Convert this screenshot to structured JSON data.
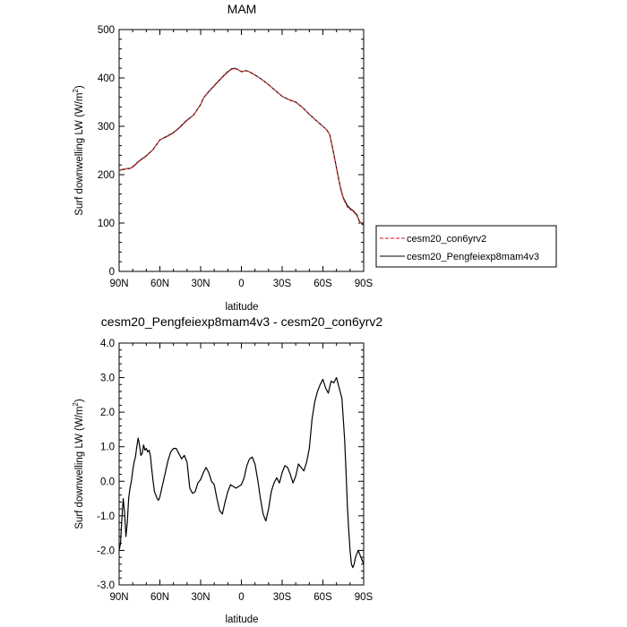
{
  "chart_data": [
    {
      "type": "line",
      "title": "MAM",
      "xlabel": "latitude",
      "ylabel": "Surf downwelling LW (W/m",
      "ylabel_sup": "2",
      "ylabel_close": ")",
      "xlim": [
        90,
        -90
      ],
      "ylim": [
        0,
        500
      ],
      "xticks": [
        90,
        60,
        30,
        0,
        -30,
        -60,
        -90
      ],
      "xticklabels": [
        "90N",
        "60N",
        "30N",
        "0",
        "30S",
        "60S",
        "90S"
      ],
      "yticks": [
        0,
        100,
        200,
        300,
        400,
        500
      ],
      "yticklabels": [
        "0",
        "100",
        "200",
        "300",
        "400",
        "500"
      ],
      "legend_position": "right",
      "series": [
        {
          "name": "cesm20_con6yrv2",
          "color": "#e04040",
          "style": "dashed",
          "x": [
            90,
            85,
            82,
            80,
            75,
            72,
            70,
            65,
            62,
            60,
            55,
            50,
            45,
            40,
            38,
            35,
            30,
            28,
            25,
            20,
            15,
            10,
            7,
            5,
            3,
            0,
            -3,
            -5,
            -10,
            -15,
            -20,
            -25,
            -30,
            -35,
            -40,
            -45,
            -50,
            -55,
            -60,
            -63,
            -65,
            -67,
            -70,
            -73,
            -75,
            -78,
            -80,
            -82,
            -85,
            -87,
            -90
          ],
          "y": [
            210,
            212,
            213,
            215,
            228,
            234,
            238,
            252,
            264,
            272,
            278,
            286,
            298,
            312,
            316,
            324,
            345,
            358,
            368,
            383,
            398,
            412,
            418,
            419,
            418,
            413,
            415,
            414,
            406,
            397,
            386,
            374,
            362,
            355,
            350,
            339,
            325,
            312,
            300,
            292,
            283,
            255,
            212,
            170,
            150,
            133,
            128,
            125,
            115,
            102,
            95
          ]
        },
        {
          "name": "cesm20_Pengfeiexp8mam4v3",
          "color": "#000000",
          "style": "solid",
          "x": [
            90,
            85,
            82,
            80,
            75,
            72,
            70,
            65,
            62,
            60,
            55,
            50,
            45,
            40,
            38,
            35,
            30,
            28,
            25,
            20,
            15,
            10,
            7,
            5,
            3,
            0,
            -3,
            -5,
            -10,
            -15,
            -20,
            -25,
            -30,
            -35,
            -40,
            -45,
            -50,
            -55,
            -60,
            -63,
            -65,
            -67,
            -70,
            -73,
            -75,
            -78,
            -80,
            -82,
            -85,
            -87,
            -90
          ],
          "y": [
            209,
            212,
            213,
            216,
            229,
            235,
            239,
            252,
            264,
            272,
            279,
            287,
            299,
            313,
            317,
            324,
            345,
            358,
            369,
            384,
            399,
            413,
            419,
            420,
            418,
            413,
            415,
            414,
            406,
            397,
            386,
            374,
            362,
            355,
            350,
            339,
            325,
            312,
            300,
            292,
            283,
            257,
            214,
            172,
            152,
            136,
            130,
            126,
            117,
            103,
            95
          ]
        }
      ]
    },
    {
      "type": "line",
      "title": "cesm20_Pengfeiexp8mam4v3 - cesm20_con6yrv2",
      "xlabel": "latitude",
      "ylabel": "Surf downwelling LW (W/m",
      "ylabel_sup": "2",
      "ylabel_close": ")",
      "xlim": [
        90,
        -90
      ],
      "ylim": [
        -3.0,
        4.0
      ],
      "xticks": [
        90,
        60,
        30,
        0,
        -30,
        -60,
        -90
      ],
      "xticklabels": [
        "90N",
        "60N",
        "30N",
        "0",
        "30S",
        "60S",
        "90S"
      ],
      "yticks": [
        -3.0,
        -2.0,
        -1.0,
        0.0,
        1.0,
        2.0,
        3.0,
        4.0
      ],
      "yticklabels": [
        "-3.0",
        "-2.0",
        "-1.0",
        "0.0",
        "1.0",
        "2.0",
        "3.0",
        "4.0"
      ],
      "series": [
        {
          "name": "",
          "color": "#000000",
          "style": "solid",
          "x": [
            90,
            89,
            88,
            87,
            86,
            85,
            84,
            83,
            82,
            81,
            80,
            79,
            78,
            77,
            76,
            75,
            74,
            73,
            72,
            71,
            70,
            69,
            68,
            67,
            66,
            65,
            64,
            63,
            62,
            61,
            60,
            58,
            56,
            54,
            52,
            50,
            48,
            46,
            44,
            42,
            40,
            38,
            36,
            34,
            32,
            30,
            28,
            26,
            24,
            22,
            20,
            18,
            16,
            14,
            12,
            10,
            8,
            6,
            4,
            2,
            0,
            -2,
            -4,
            -6,
            -8,
            -10,
            -12,
            -14,
            -16,
            -18,
            -20,
            -22,
            -24,
            -26,
            -28,
            -30,
            -32,
            -34,
            -36,
            -38,
            -40,
            -42,
            -44,
            -46,
            -48,
            -50,
            -52,
            -54,
            -56,
            -58,
            -60,
            -62,
            -64,
            -66,
            -68,
            -70,
            -72,
            -74,
            -75,
            -76,
            -77,
            -78,
            -79,
            -80,
            -81,
            -82,
            -83,
            -84,
            -85,
            -86,
            -87,
            -88,
            -89,
            -90
          ],
          "y": [
            -2.0,
            -1.8,
            -1.1,
            -0.5,
            -0.9,
            -1.6,
            -1.2,
            -0.5,
            -0.2,
            0.0,
            0.3,
            0.55,
            0.7,
            1.0,
            1.25,
            1.05,
            0.75,
            0.8,
            1.05,
            0.9,
            0.95,
            0.85,
            0.9,
            0.75,
            0.35,
            0.0,
            -0.3,
            -0.4,
            -0.5,
            -0.55,
            -0.45,
            -0.1,
            0.25,
            0.6,
            0.85,
            0.95,
            0.95,
            0.8,
            0.65,
            0.75,
            0.55,
            -0.2,
            -0.35,
            -0.3,
            -0.05,
            0.05,
            0.25,
            0.4,
            0.25,
            0.0,
            -0.1,
            -0.5,
            -0.85,
            -0.95,
            -0.6,
            -0.3,
            -0.1,
            -0.15,
            -0.2,
            -0.15,
            -0.1,
            0.1,
            0.45,
            0.65,
            0.7,
            0.5,
            0.05,
            -0.5,
            -0.95,
            -1.15,
            -0.8,
            -0.3,
            -0.05,
            0.1,
            -0.05,
            0.25,
            0.45,
            0.4,
            0.2,
            -0.05,
            0.15,
            0.5,
            0.4,
            0.3,
            0.55,
            0.95,
            1.8,
            2.3,
            2.6,
            2.8,
            2.95,
            2.7,
            2.55,
            2.9,
            2.85,
            3.0,
            2.7,
            2.4,
            1.8,
            1.2,
            0.3,
            -0.7,
            -1.4,
            -2.0,
            -2.4,
            -2.5,
            -2.4,
            -2.2,
            -2.1,
            -2.0,
            -2.1,
            -2.2,
            -2.3,
            -2.4
          ]
        }
      ]
    }
  ]
}
